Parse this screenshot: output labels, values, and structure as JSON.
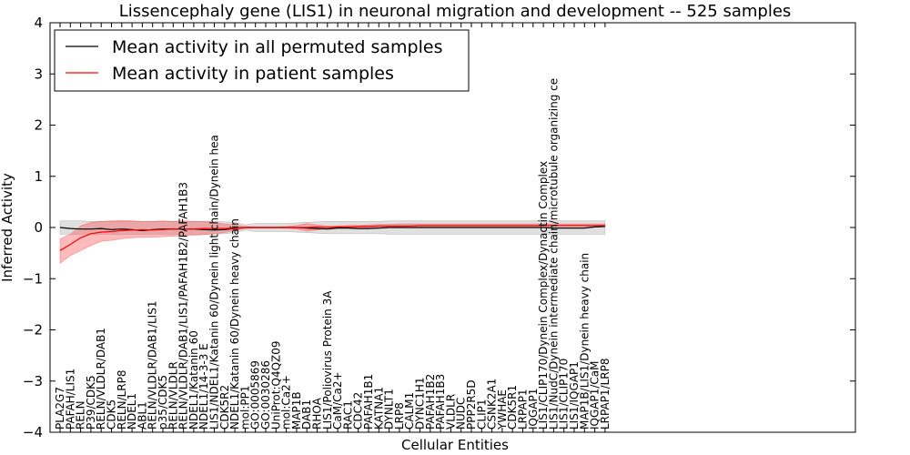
{
  "chart_data": {
    "type": "line",
    "title": "Lissencephaly gene (LIS1) in neuronal migration and development -- 525 samples",
    "xlabel": "Cellular Entities",
    "ylabel": "Inferred Activity",
    "ylim": [
      -4,
      4
    ],
    "yticks": [
      -4,
      -3,
      -2,
      -1,
      0,
      1,
      2,
      3,
      4
    ],
    "ytick_labels": [
      "−4",
      "−3",
      "−2",
      "−1",
      "0",
      "1",
      "2",
      "3",
      "4"
    ],
    "grid": false,
    "legend_position": "top-left",
    "categories": [
      "PLA2G7",
      "PAFAH/LIS1",
      "RELN",
      "P39/CDK5",
      "RELN/VLDLR/DAB1",
      "CDK5",
      "RELN/LRP8",
      "NDEL1",
      "ABL1",
      "RELN/VLDLR/DAB1/LIS1",
      "p35/CDK5",
      "RELN/VLDLR",
      "RELN/VLDLR/DAB1/LIS1/PAFAH1B2/PAFAH1B3",
      "NDEL1/Katanin 60",
      "NDEL1/14-3-3 E",
      "LIS1/NDEL1/Katanin 60/Dynein light chain/Dynein hea",
      "CDK5R2",
      "NDEL1/Katanin 60/Dynein heavy chain",
      "mol:PP1",
      "GO:0005869",
      "GO:0030286",
      "UniProt:Q4QZ09",
      "mol:Ca2+",
      "MAP1B",
      "DAB1",
      "RHOA",
      "LIS1/Poliovirus Protein 3A",
      "CaM/Ca2+",
      "RAC1",
      "CDC42",
      "PAFAH1B1",
      "KATNA1",
      "DYNLT1",
      "LRP8",
      "CALM1",
      "DYNC1H1",
      "PAFAH1B2",
      "PAFAH1B3",
      "VLDLR",
      "NUDC",
      "PPP2R5D",
      "CLIP1",
      "CSNK2A1",
      "YWHAE",
      "CDK5R1",
      "LRPAP1",
      "IQGAP1",
      "LIS1/CLIP170/Dynein Complex/Dynactin Complex",
      "LIS1/NudC/Dynein intermediate chain/microtubule organizing ce",
      "LIS1/CLIP170",
      "LIS1/IQGAP1",
      "MAP1B/LIS1/Dynein heavy chain",
      "IQGAP1/CaM",
      "LRPAP1/LRP8"
    ],
    "series": [
      {
        "name": "Mean activity in all permuted samples",
        "color": "#000000",
        "values": [
          0.0,
          -0.02,
          -0.03,
          -0.03,
          -0.02,
          -0.04,
          -0.03,
          -0.04,
          -0.06,
          -0.04,
          -0.03,
          -0.03,
          -0.03,
          -0.03,
          -0.04,
          -0.05,
          -0.04,
          -0.02,
          0.0,
          0.0,
          0.0,
          0.0,
          0.0,
          0.0,
          -0.01,
          -0.02,
          -0.03,
          -0.01,
          -0.01,
          -0.02,
          -0.02,
          -0.01,
          0.0,
          0.0,
          0.0,
          0.0,
          0.0,
          0.0,
          0.0,
          0.0,
          0.0,
          0.0,
          0.0,
          0.0,
          0.0,
          0.0,
          0.0,
          0.0,
          -0.01,
          -0.01,
          -0.01,
          -0.01,
          0.01,
          0.02
        ],
        "band_lower": [
          -0.13,
          -0.13,
          -0.13,
          -0.13,
          -0.13,
          -0.13,
          -0.13,
          -0.13,
          -0.13,
          -0.13,
          -0.13,
          -0.13,
          -0.13,
          -0.13,
          -0.13,
          -0.13,
          -0.12,
          -0.1,
          -0.05,
          -0.08,
          -0.08,
          -0.08,
          -0.08,
          -0.09,
          -0.1,
          -0.11,
          -0.12,
          -0.12,
          -0.12,
          -0.12,
          -0.12,
          -0.12,
          -0.13,
          -0.13,
          -0.13,
          -0.13,
          -0.13,
          -0.13,
          -0.13,
          -0.13,
          -0.13,
          -0.13,
          -0.13,
          -0.13,
          -0.13,
          -0.13,
          -0.13,
          -0.13,
          -0.13,
          -0.13,
          -0.13,
          -0.13,
          -0.13,
          -0.13
        ],
        "band_upper": [
          0.13,
          0.13,
          0.13,
          0.12,
          0.12,
          0.12,
          0.12,
          0.12,
          0.12,
          0.12,
          0.12,
          0.12,
          0.12,
          0.12,
          0.12,
          0.12,
          0.11,
          0.1,
          0.05,
          0.08,
          0.08,
          0.08,
          0.08,
          0.09,
          0.1,
          0.11,
          0.12,
          0.12,
          0.12,
          0.12,
          0.12,
          0.12,
          0.13,
          0.13,
          0.13,
          0.13,
          0.13,
          0.13,
          0.13,
          0.13,
          0.13,
          0.13,
          0.13,
          0.13,
          0.13,
          0.13,
          0.13,
          0.13,
          0.13,
          0.13,
          0.13,
          0.13,
          0.13,
          0.13
        ]
      },
      {
        "name": "Mean activity in patient samples",
        "color": "#ff0000",
        "values": [
          -0.45,
          -0.33,
          -0.2,
          -0.12,
          -0.09,
          -0.08,
          -0.06,
          -0.05,
          -0.04,
          -0.05,
          -0.04,
          -0.03,
          -0.03,
          -0.03,
          -0.02,
          -0.02,
          -0.02,
          -0.01,
          0.0,
          0.0,
          0.0,
          0.0,
          0.0,
          0.0,
          0.0,
          0.01,
          0.0,
          0.01,
          0.01,
          0.02,
          0.02,
          0.03,
          0.03,
          0.03,
          0.03,
          0.04,
          0.04,
          0.04,
          0.04,
          0.04,
          0.04,
          0.04,
          0.04,
          0.04,
          0.04,
          0.04,
          0.04,
          0.04,
          0.04,
          0.04,
          0.04,
          0.04,
          0.04,
          0.04
        ],
        "band_lower": [
          -0.7,
          -0.55,
          -0.45,
          -0.35,
          -0.27,
          -0.25,
          -0.22,
          -0.2,
          -0.19,
          -0.19,
          -0.18,
          -0.17,
          -0.16,
          -0.15,
          -0.14,
          -0.12,
          -0.1,
          -0.06,
          -0.02,
          -0.01,
          -0.01,
          -0.01,
          -0.01,
          -0.03,
          -0.07,
          -0.05,
          -0.02,
          -0.01,
          -0.01,
          0.0,
          0.0,
          0.01,
          0.01,
          0.01,
          0.02,
          0.02,
          0.02,
          0.02,
          0.02,
          0.02,
          0.02,
          0.02,
          0.02,
          0.02,
          0.02,
          0.02,
          0.02,
          0.02,
          0.02,
          0.02,
          0.02,
          0.02,
          0.02,
          0.02
        ],
        "band_upper": [
          -0.22,
          -0.13,
          0.03,
          0.1,
          0.12,
          0.13,
          0.14,
          0.13,
          0.12,
          0.12,
          0.13,
          0.12,
          0.13,
          0.12,
          0.12,
          0.1,
          0.07,
          0.05,
          0.02,
          0.01,
          0.01,
          0.01,
          0.02,
          0.04,
          0.08,
          0.05,
          0.03,
          0.03,
          0.04,
          0.04,
          0.05,
          0.06,
          0.06,
          0.07,
          0.07,
          0.07,
          0.07,
          0.07,
          0.07,
          0.07,
          0.07,
          0.07,
          0.07,
          0.07,
          0.07,
          0.07,
          0.07,
          0.07,
          0.07,
          0.07,
          0.07,
          0.07,
          0.07,
          0.07
        ]
      }
    ]
  }
}
